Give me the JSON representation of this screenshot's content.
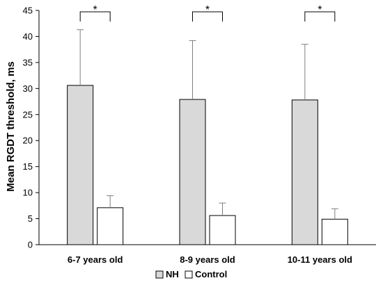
{
  "chart_data": {
    "type": "bar",
    "ylabel": "Mean RGDT threshold, ms",
    "xlabel": "",
    "title": "",
    "ylim": [
      0,
      45
    ],
    "yticks": [
      0,
      5,
      10,
      15,
      20,
      25,
      30,
      35,
      40,
      45
    ],
    "categories": [
      "6-7 years old",
      "8-9 years old",
      "10-11 years old"
    ],
    "series": [
      {
        "name": "NH",
        "values": [
          30.6,
          27.9,
          27.8
        ],
        "error": [
          10.7,
          11.3,
          10.7
        ],
        "color": "#d9d9d9"
      },
      {
        "name": "Control",
        "values": [
          7.1,
          5.6,
          4.9
        ],
        "error": [
          2.3,
          2.4,
          2.0
        ],
        "color": "#ffffff"
      }
    ],
    "significance": [
      "*",
      "*",
      "*"
    ],
    "legend_position": "bottom",
    "grid": false
  }
}
